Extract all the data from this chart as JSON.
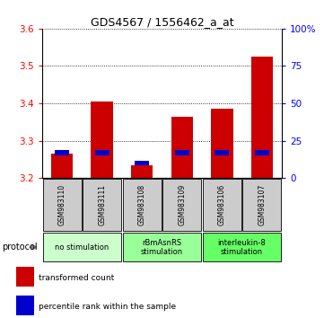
{
  "title": "GDS4567 / 1556462_a_at",
  "samples": [
    "GSM983110",
    "GSM983111",
    "GSM983108",
    "GSM983109",
    "GSM983106",
    "GSM983107"
  ],
  "transformed_count": [
    3.265,
    3.405,
    3.235,
    3.365,
    3.385,
    3.525
  ],
  "percentile_rank": [
    17,
    17,
    10,
    17,
    17,
    17
  ],
  "ymin": 3.2,
  "ymax": 3.6,
  "yticks": [
    3.2,
    3.3,
    3.4,
    3.5,
    3.6
  ],
  "right_yticks": [
    0,
    25,
    50,
    75,
    100
  ],
  "bar_color": "#cc0000",
  "percentile_color": "#0000cc",
  "group_spans": [
    {
      "start": 0,
      "end": 1,
      "color": "#ccffcc",
      "label": "no stimulation"
    },
    {
      "start": 2,
      "end": 3,
      "color": "#99ff99",
      "label": "rBmAsnRS\nstimulation"
    },
    {
      "start": 4,
      "end": 5,
      "color": "#66ff66",
      "label": "interleukin-8\nstimulation"
    }
  ],
  "sample_box_color": "#cccccc",
  "protocol_label": "protocol",
  "legend_entries": [
    {
      "color": "#cc0000",
      "label": "transformed count"
    },
    {
      "color": "#0000cc",
      "label": "percentile rank within the sample"
    }
  ],
  "bar_width": 0.55
}
